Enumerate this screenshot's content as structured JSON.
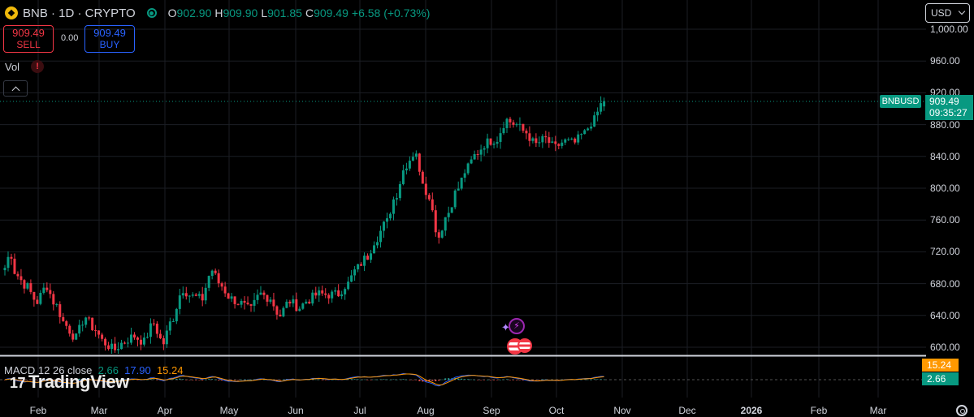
{
  "header": {
    "symbol_title": "BNB · 1D · CRYPTO",
    "ohlc": [
      {
        "key": "O",
        "value": "902.90"
      },
      {
        "key": "H",
        "value": "909.90"
      },
      {
        "key": "L",
        "value": "901.85"
      },
      {
        "key": "C",
        "value": "909.49"
      }
    ],
    "change": "+6.58 (+0.73%)",
    "icons": {
      "symbol": "bnb-coin-icon",
      "status": "market-open-icon"
    }
  },
  "trading": {
    "sell_price": "909.49",
    "sell_label": "SELL",
    "spread": "0.00",
    "buy_price": "909.49",
    "buy_label": "BUY"
  },
  "volume": {
    "label": "Vol",
    "warning_icon": "!"
  },
  "currency": {
    "selected": "USD"
  },
  "price_axis": [
    "1,000.00",
    "960.00",
    "920.00",
    "880.00",
    "840.00",
    "800.00",
    "760.00",
    "720.00",
    "680.00",
    "640.00",
    "600.00"
  ],
  "time_axis": [
    "Feb",
    "Mar",
    "Apr",
    "May",
    "Jun",
    "Jul",
    "Aug",
    "Sep",
    "Oct",
    "Nov",
    "Dec",
    "2026",
    "Feb",
    "Mar"
  ],
  "last_price": {
    "symbol": "BNBUSD",
    "price": "909.49",
    "countdown": "09:35:27"
  },
  "macd": {
    "label": "MACD 12 26 close",
    "values": [
      {
        "text": "2.66",
        "color": "#089981"
      },
      {
        "text": "17.90",
        "color": "#2962ff"
      },
      {
        "text": "15.24",
        "color": "#ff9800"
      }
    ],
    "axis_tags": [
      {
        "text": "15.24",
        "color": "#ff9800"
      },
      {
        "text": "2.66",
        "color": "#089981"
      }
    ]
  },
  "branding": {
    "logo": "TradingView"
  },
  "colors": {
    "up": "#089981",
    "down": "#f23645",
    "grid": "#1b1e24",
    "background": "#000000"
  },
  "chart_data": {
    "type": "candlestick",
    "symbol": "BNBUSD",
    "interval": "1D",
    "price_range": [
      600,
      1000
    ],
    "grid": true,
    "visible_months": [
      "Feb",
      "Mar",
      "Apr",
      "May",
      "Jun",
      "Jul",
      "Aug",
      "Sep"
    ],
    "anchor_closes": [
      [
        0,
        700
      ],
      [
        5,
        716
      ],
      [
        10,
        690
      ],
      [
        20,
        676
      ],
      [
        30,
        657
      ],
      [
        40,
        677
      ],
      [
        50,
        652
      ],
      [
        60,
        627
      ],
      [
        70,
        612
      ],
      [
        80,
        638
      ],
      [
        90,
        622
      ],
      [
        100,
        605
      ],
      [
        110,
        597
      ],
      [
        120,
        607
      ],
      [
        130,
        614
      ],
      [
        140,
        607
      ],
      [
        150,
        630
      ],
      [
        160,
        605
      ],
      [
        170,
        637
      ],
      [
        180,
        673
      ],
      [
        190,
        664
      ],
      [
        200,
        661
      ],
      [
        210,
        697
      ],
      [
        220,
        677
      ],
      [
        230,
        661
      ],
      [
        240,
        655
      ],
      [
        250,
        647
      ],
      [
        260,
        667
      ],
      [
        270,
        662
      ],
      [
        280,
        640
      ],
      [
        290,
        658
      ],
      [
        300,
        650
      ],
      [
        310,
        660
      ],
      [
        320,
        667
      ],
      [
        330,
        666
      ],
      [
        340,
        667
      ],
      [
        350,
        680
      ],
      [
        360,
        700
      ],
      [
        370,
        714
      ],
      [
        380,
        738
      ],
      [
        390,
        758
      ],
      [
        400,
        793
      ],
      [
        410,
        830
      ],
      [
        420,
        846
      ],
      [
        425,
        810
      ],
      [
        430,
        792
      ],
      [
        440,
        739
      ],
      [
        450,
        770
      ],
      [
        460,
        800
      ],
      [
        470,
        826
      ],
      [
        480,
        845
      ],
      [
        490,
        858
      ],
      [
        500,
        862
      ],
      [
        510,
        886
      ],
      [
        520,
        880
      ],
      [
        530,
        870
      ],
      [
        540,
        855
      ],
      [
        550,
        862
      ],
      [
        560,
        851
      ],
      [
        570,
        859
      ],
      [
        580,
        857
      ],
      [
        590,
        869
      ],
      [
        600,
        886
      ],
      [
        610,
        910
      ]
    ],
    "last": {
      "open": 902.9,
      "high": 909.9,
      "low": 901.85,
      "close": 909.49,
      "change": 6.58,
      "change_pct": 0.73
    },
    "macd": {
      "fast": 12,
      "slow": 26,
      "source": "close",
      "histogram": 2.66,
      "macd": 17.9,
      "signal": 15.24
    }
  }
}
